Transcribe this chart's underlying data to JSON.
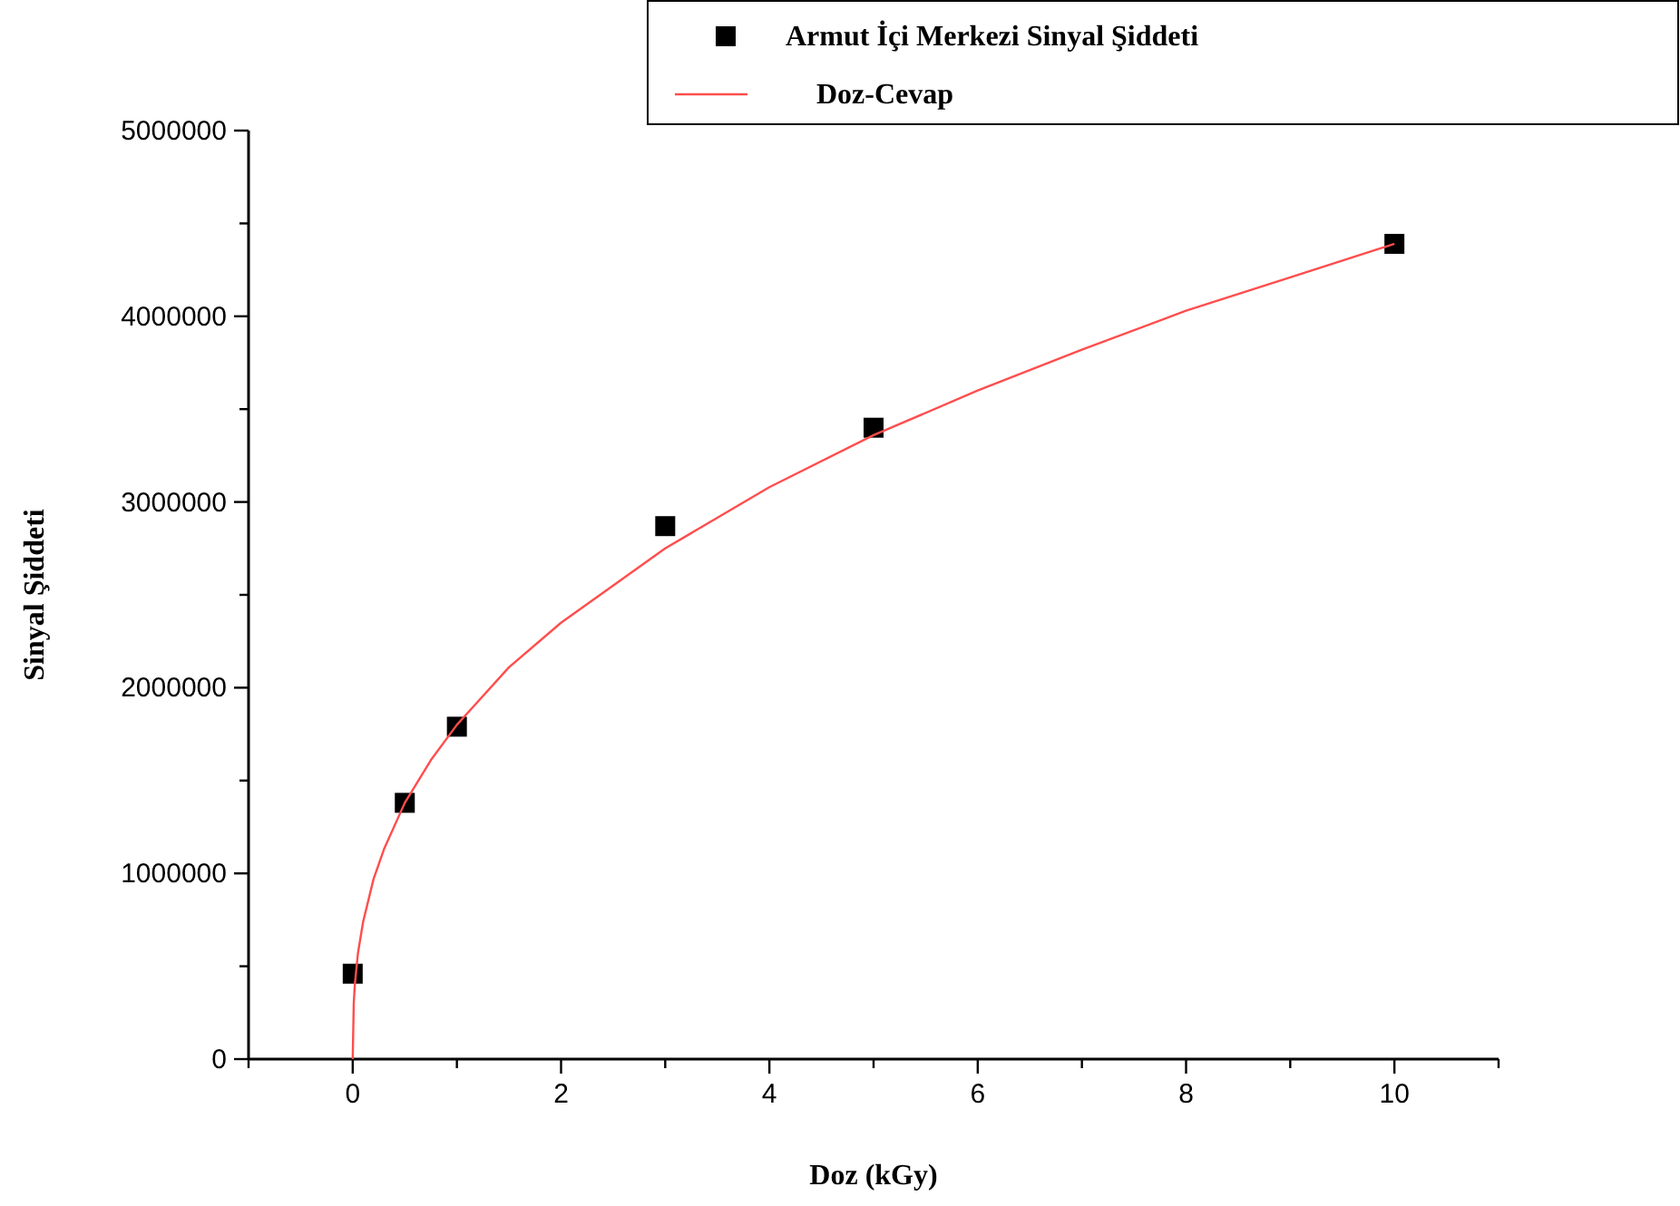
{
  "chart_data": {
    "type": "scatter",
    "xlabel": "Doz (kGy)",
    "ylabel": "Sinyal Şiddeti",
    "xlim": [
      -1,
      11
    ],
    "ylim": [
      0,
      5000000
    ],
    "xticks": [
      {
        "value": -1,
        "label": null
      },
      0,
      {
        "value": 1,
        "label": null
      },
      2,
      {
        "value": 3,
        "label": null
      },
      4,
      {
        "value": 5,
        "label": null
      },
      6,
      {
        "value": 7,
        "label": null
      },
      8,
      {
        "value": 9,
        "label": null
      },
      10,
      {
        "value": 11,
        "label": null
      }
    ],
    "yticks": [
      0,
      {
        "value": 500000,
        "label": null
      },
      1000000,
      {
        "value": 1500000,
        "label": null
      },
      2000000,
      {
        "value": 2500000,
        "label": null
      },
      3000000,
      {
        "value": 3500000,
        "label": null
      },
      4000000,
      {
        "value": 4500000,
        "label": null
      },
      5000000
    ],
    "grid": false,
    "legend": "top right",
    "series": [
      {
        "name": "Armut İçi Merkezi Sinyal Şiddeti",
        "marker": "square",
        "color": "#000000",
        "x": [
          0,
          0.5,
          1,
          3,
          5,
          10
        ],
        "values": [
          460000,
          1380000,
          1790000,
          2870000,
          3400000,
          4390000
        ]
      },
      {
        "name": "Doz-Cevap",
        "type": "line",
        "marker": "none",
        "color": "#ff4d4d",
        "x": [
          0,
          0.01,
          0.02,
          0.05,
          0.1,
          0.2,
          0.3,
          0.5,
          0.75,
          1,
          1.5,
          2,
          3,
          4,
          5,
          6,
          7,
          8,
          9,
          10
        ],
        "values": [
          0,
          300000,
          400000,
          570000,
          740000,
          970000,
          1130000,
          1380000,
          1610000,
          1800000,
          2110000,
          2350000,
          2750000,
          3080000,
          3360000,
          3600000,
          3820000,
          4030000,
          4210000,
          4390000
        ]
      }
    ]
  }
}
